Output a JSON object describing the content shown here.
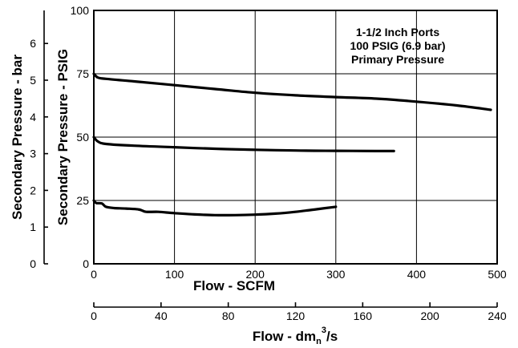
{
  "chart_data": {
    "type": "line",
    "annotation": [
      "1-1/2 Inch Ports",
      "100 PSIG (6.9 bar)",
      "Primary Pressure"
    ],
    "x_primary": {
      "label": "Flow - SCFM",
      "range": [
        0,
        500
      ],
      "ticks": [
        0,
        100,
        200,
        300,
        400,
        500
      ]
    },
    "x_secondary": {
      "label_main": "Flow - dm",
      "label_sub": "n",
      "label_sup": "3",
      "label_end": "/s",
      "range": [
        0,
        240
      ],
      "ticks": [
        0,
        40,
        80,
        120,
        160,
        200,
        240
      ]
    },
    "y_primary": {
      "label": "Secondary Pressure - PSIG",
      "range": [
        0,
        100
      ],
      "ticks": [
        0,
        25,
        50,
        75,
        100
      ]
    },
    "y_secondary": {
      "label": "Secondary Pressure - bar",
      "range": [
        0,
        6.9
      ],
      "ticks": [
        0,
        1,
        2,
        3,
        4,
        5,
        6
      ]
    },
    "grid": true,
    "series": [
      {
        "x": [
          0,
          5,
          15,
          50,
          100,
          150,
          200,
          250,
          300,
          350,
          400,
          450,
          492
        ],
        "y": [
          75,
          73.5,
          73,
          72,
          70.5,
          69,
          67.5,
          66.5,
          65.8,
          65.2,
          64,
          62.5,
          60.8
        ]
      },
      {
        "x": [
          0,
          5,
          15,
          50,
          100,
          150,
          200,
          250,
          300,
          350,
          372
        ],
        "y": [
          50,
          48.3,
          47.3,
          46.6,
          46,
          45.4,
          45,
          44.7,
          44.6,
          44.5,
          44.5
        ]
      },
      {
        "x": [
          0,
          3,
          10,
          15,
          25,
          40,
          55,
          60,
          65,
          80,
          100,
          125,
          150,
          175,
          200,
          225,
          250,
          275,
          300
        ],
        "y": [
          25,
          24,
          23.8,
          22.5,
          22,
          21.8,
          21.5,
          21,
          20.5,
          20.5,
          20,
          19.5,
          19.2,
          19.2,
          19.4,
          19.8,
          20.5,
          21.5,
          22.5
        ]
      }
    ]
  }
}
